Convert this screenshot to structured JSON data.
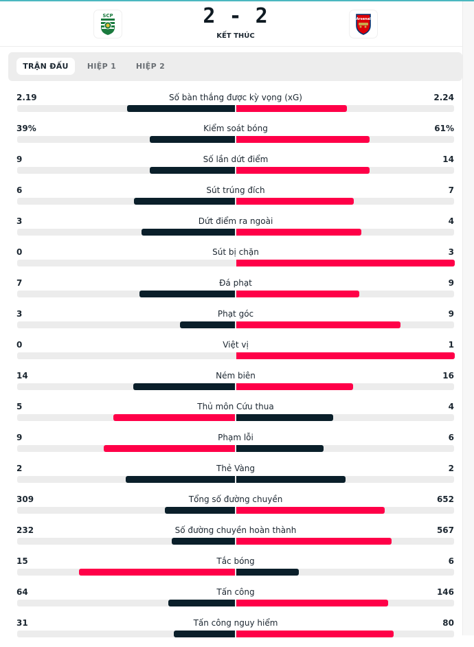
{
  "match": {
    "home_team": "Sporting CP",
    "home_crest_text": "SCP",
    "away_team": "Arsenal",
    "away_crest_text": "Arsenal",
    "score": "2 - 2",
    "status": "KẾT THÚC"
  },
  "tabs": [
    {
      "label": "TRẬN ĐẤU",
      "active": true
    },
    {
      "label": "HIỆP 1",
      "active": false
    },
    {
      "label": "HIỆP 2",
      "active": false
    }
  ],
  "colors": {
    "highlight": "#ff0048",
    "neutral": "#0a1f2a",
    "track": "#ececec",
    "accent_line": "#4bb8c0"
  },
  "stats": [
    {
      "label": "Số bàn thắng được kỳ vọng (xG)",
      "home": "2.19",
      "away": "2.24",
      "home_value": 2.19,
      "away_value": 2.24
    },
    {
      "label": "Kiểm soát bóng",
      "home": "39%",
      "away": "61%",
      "home_value": 39,
      "away_value": 61
    },
    {
      "label": "Số lần dứt điểm",
      "home": "9",
      "away": "14",
      "home_value": 9,
      "away_value": 14
    },
    {
      "label": "Sút trúng đích",
      "home": "6",
      "away": "7",
      "home_value": 6,
      "away_value": 7
    },
    {
      "label": "Dứt điểm ra ngoài",
      "home": "3",
      "away": "4",
      "home_value": 3,
      "away_value": 4
    },
    {
      "label": "Sút bị chặn",
      "home": "0",
      "away": "3",
      "home_value": 0,
      "away_value": 3
    },
    {
      "label": "Đá phạt",
      "home": "7",
      "away": "9",
      "home_value": 7,
      "away_value": 9
    },
    {
      "label": "Phạt góc",
      "home": "3",
      "away": "9",
      "home_value": 3,
      "away_value": 9
    },
    {
      "label": "Việt vị",
      "home": "0",
      "away": "1",
      "home_value": 0,
      "away_value": 1
    },
    {
      "label": "Ném biên",
      "home": "14",
      "away": "16",
      "home_value": 14,
      "away_value": 16
    },
    {
      "label": "Thủ môn Cứu thua",
      "home": "5",
      "away": "4",
      "home_value": 5,
      "away_value": 4
    },
    {
      "label": "Phạm lỗi",
      "home": "9",
      "away": "6",
      "home_value": 9,
      "away_value": 6
    },
    {
      "label": "Thẻ Vàng",
      "home": "2",
      "away": "2",
      "home_value": 2,
      "away_value": 2
    },
    {
      "label": "Tổng số đường chuyền",
      "home": "309",
      "away": "652",
      "home_value": 309,
      "away_value": 652
    },
    {
      "label": "Số đường chuyền hoàn thành",
      "home": "232",
      "away": "567",
      "home_value": 232,
      "away_value": 567
    },
    {
      "label": "Tắc bóng",
      "home": "15",
      "away": "6",
      "home_value": 15,
      "away_value": 6
    },
    {
      "label": "Tấn công",
      "home": "64",
      "away": "146",
      "home_value": 64,
      "away_value": 146
    },
    {
      "label": "Tấn công nguy hiểm",
      "home": "31",
      "away": "80",
      "home_value": 31,
      "away_value": 80
    }
  ]
}
